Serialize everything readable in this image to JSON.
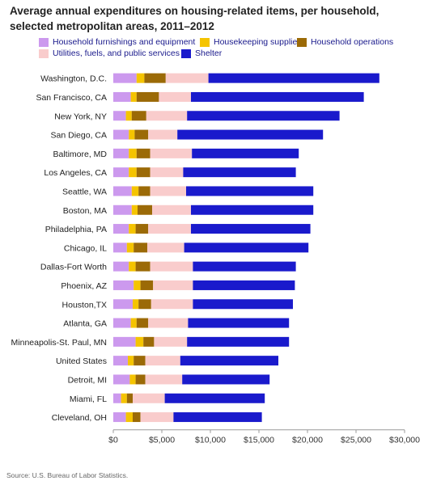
{
  "title_lines": [
    "Average annual expenditures on housing-related items, per household,",
    "selected metropolitan areas, 2011–2012"
  ],
  "source": "Source: U.S. Bureau of Labor Statistics.",
  "colors": {
    "Household furnishings and equipment": "#cc99ee",
    "Housekeeping supplies": "#f5c400",
    "Household operations": "#9b6a07",
    "Utilities, fuels, and public services": "#f9cccc",
    "Shelter": "#1a1acc"
  },
  "chart_data": {
    "type": "bar",
    "orientation": "horizontal",
    "stacked": true,
    "title": "Average annual expenditures on housing-related items, per household, selected metropolitan areas, 2011–2012",
    "xlim": [
      0,
      30000
    ],
    "x_ticks": [
      "$0",
      "$5,000",
      "$10,000",
      "$15,000",
      "$20,000",
      "$25,000",
      "$30,000"
    ],
    "x_tick_values": [
      0,
      5000,
      10000,
      15000,
      20000,
      25000,
      30000
    ],
    "legend_position": "top",
    "categories": [
      "Washington, D.C.",
      "San Francisco, CA",
      "New York, NY",
      "San Diego, CA",
      "Baltimore, MD",
      "Los Angeles, CA",
      "Seattle, WA",
      "Boston, MA",
      "Philadelphia, PA",
      "Chicago, IL",
      "Dallas-Fort Worth",
      "Phoenix, AZ",
      "Houston,TX",
      "Atlanta, GA",
      "Minneapolis-St. Paul, MN",
      "United States",
      "Detroit, MI",
      "Miami, FL",
      "Cleveland, OH"
    ],
    "series": [
      {
        "name": "Household furnishings and equipment",
        "values": [
          2400,
          1800,
          1300,
          1600,
          1600,
          1600,
          1900,
          1900,
          1600,
          1400,
          1600,
          2100,
          2000,
          1800,
          2300,
          1500,
          1700,
          800,
          1300
        ]
      },
      {
        "name": "Housekeeping supplies",
        "values": [
          800,
          600,
          600,
          600,
          800,
          800,
          700,
          600,
          700,
          700,
          700,
          700,
          600,
          600,
          800,
          600,
          600,
          600,
          700
        ]
      },
      {
        "name": "Household operations",
        "values": [
          2200,
          2300,
          1500,
          1400,
          1400,
          1400,
          1200,
          1500,
          1300,
          1400,
          1500,
          1300,
          1300,
          1200,
          1100,
          1200,
          1000,
          600,
          800
        ]
      },
      {
        "name": "Utilities, fuels, and public services",
        "values": [
          4400,
          3300,
          4200,
          3000,
          4300,
          3400,
          3700,
          4000,
          4400,
          3800,
          4400,
          4100,
          4300,
          4100,
          3400,
          3600,
          3800,
          3300,
          3400
        ]
      },
      {
        "name": "Shelter",
        "values": [
          17600,
          17800,
          15700,
          15000,
          11000,
          11600,
          13100,
          12600,
          12300,
          12800,
          10600,
          10500,
          10300,
          10400,
          10500,
          10100,
          9000,
          10300,
          9100
        ]
      }
    ]
  }
}
